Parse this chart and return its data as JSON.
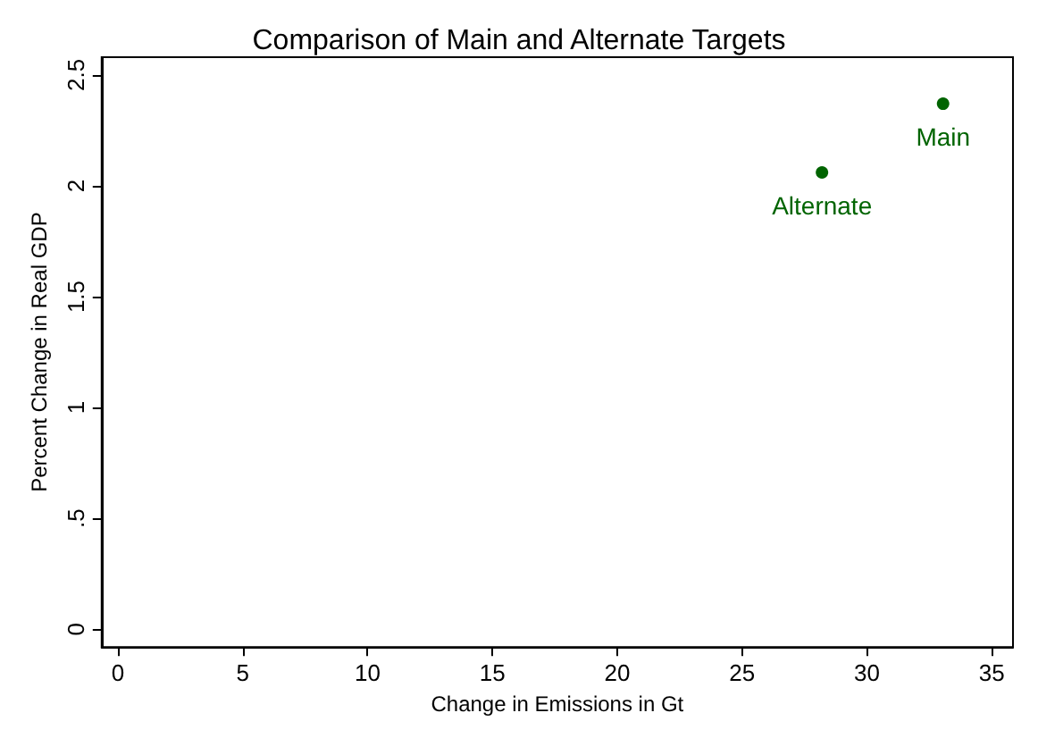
{
  "chart_data": {
    "type": "scatter",
    "title": "Comparison of Main and Alternate Targets",
    "xlabel": "Change in Emissions in Gt",
    "ylabel": "Percent Change in Real GDP",
    "series": [
      {
        "name": "Main",
        "color": "#006400",
        "x": [
          33.05
        ],
        "values": [
          2.37
        ]
      },
      {
        "name": "Alternate",
        "color": "#006400",
        "x": [
          28.2
        ],
        "values": [
          2.06
        ]
      }
    ],
    "xlim": [
      -0.65,
      35.85
    ],
    "xticks": [
      0,
      5,
      10,
      15,
      20,
      25,
      30,
      35
    ],
    "ylim": [
      -0.08,
      2.58
    ],
    "yticks": [
      0,
      {
        "value": 0.5,
        "label": ".5"
      },
      1,
      1.5,
      2,
      2.5
    ],
    "grid": false,
    "legend": false,
    "marker": "circle"
  }
}
